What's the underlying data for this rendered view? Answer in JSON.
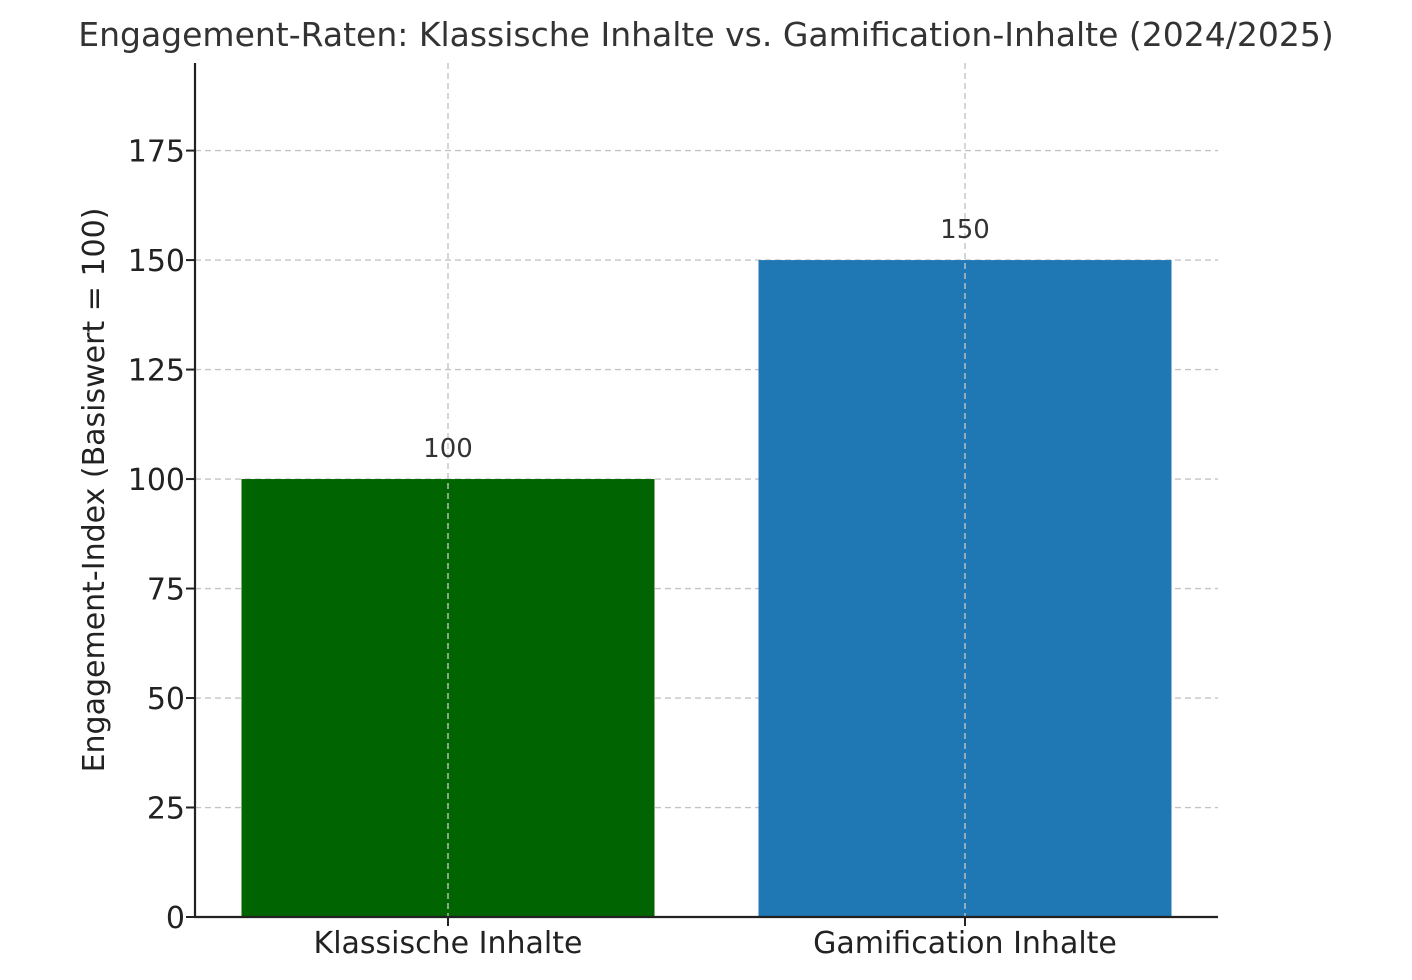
{
  "chart_data": {
    "type": "bar",
    "title": "Engagement-Raten: Klassische Inhalte vs. Gamification-Inhalte (2024/2025)",
    "xlabel": "",
    "ylabel": "Engagement-Index (Basiswert = 100)",
    "categories": [
      "Klassische Inhalte",
      "Gamification Inhalte"
    ],
    "values": [
      100,
      150
    ],
    "data_labels": [
      "100",
      "150"
    ],
    "colors": [
      "#006400",
      "#1f77b4"
    ],
    "ylim": [
      0,
      195
    ],
    "yticks": [
      0,
      25,
      50,
      75,
      100,
      125,
      150,
      175
    ],
    "grid": true,
    "legend": "none"
  }
}
